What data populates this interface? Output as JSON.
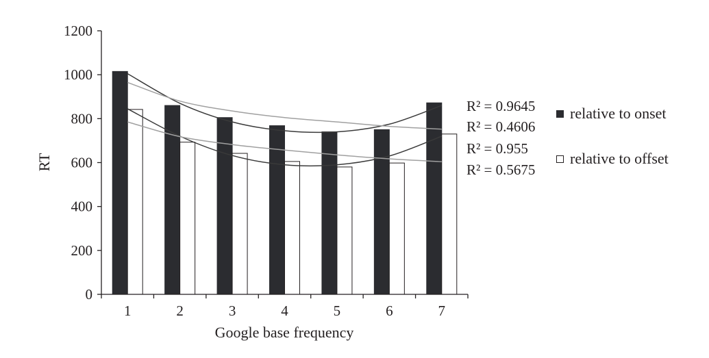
{
  "chart_data": {
    "type": "bar",
    "title": "",
    "xlabel": "Google base frequency",
    "ylabel": "RT",
    "categories": [
      "1",
      "2",
      "3",
      "4",
      "5",
      "6",
      "7"
    ],
    "ylim": [
      0,
      1200
    ],
    "yticks": [
      "0",
      "200",
      "400",
      "600",
      "800",
      "1000",
      "1200"
    ],
    "grid": false,
    "legend_position": "right",
    "series": [
      {
        "name": "relative to onset",
        "values": [
          1015,
          860,
          805,
          768,
          740,
          750,
          872
        ],
        "color": "#2b2c30"
      },
      {
        "name": "relative to offset",
        "values": [
          842,
          693,
          642,
          605,
          580,
          598,
          730
        ],
        "color": "#ffffff"
      }
    ],
    "trendlines": [
      {
        "series": "relative to onset",
        "kind": "polynomial",
        "color": "#3a3a3a",
        "points": [
          [
            1,
            1005
          ],
          [
            2,
            870
          ],
          [
            3,
            785
          ],
          [
            4,
            745
          ],
          [
            5,
            740
          ],
          [
            6,
            775
          ],
          [
            7,
            860
          ]
        ]
      },
      {
        "series": "relative to onset",
        "kind": "logarithmic",
        "color": "#a0a0a0",
        "points": [
          [
            1,
            965
          ],
          [
            2,
            880
          ],
          [
            3,
            835
          ],
          [
            4,
            805
          ],
          [
            5,
            785
          ],
          [
            6,
            765
          ],
          [
            7,
            752
          ]
        ]
      },
      {
        "series": "relative to offset",
        "kind": "polynomial",
        "color": "#3a3a3a",
        "points": [
          [
            1,
            845
          ],
          [
            2,
            720
          ],
          [
            3,
            632
          ],
          [
            4,
            590
          ],
          [
            5,
            590
          ],
          [
            6,
            630
          ],
          [
            7,
            720
          ]
        ]
      },
      {
        "series": "relative to offset",
        "kind": "logarithmic",
        "color": "#a0a0a0",
        "points": [
          [
            1,
            785
          ],
          [
            2,
            718
          ],
          [
            3,
            682
          ],
          [
            4,
            657
          ],
          [
            5,
            635
          ],
          [
            6,
            617
          ],
          [
            7,
            604
          ]
        ]
      }
    ],
    "annotations": [
      "R² = 0.9645",
      "R² = 0.4606",
      "R² = 0.955",
      "R² = 0.5675"
    ]
  }
}
